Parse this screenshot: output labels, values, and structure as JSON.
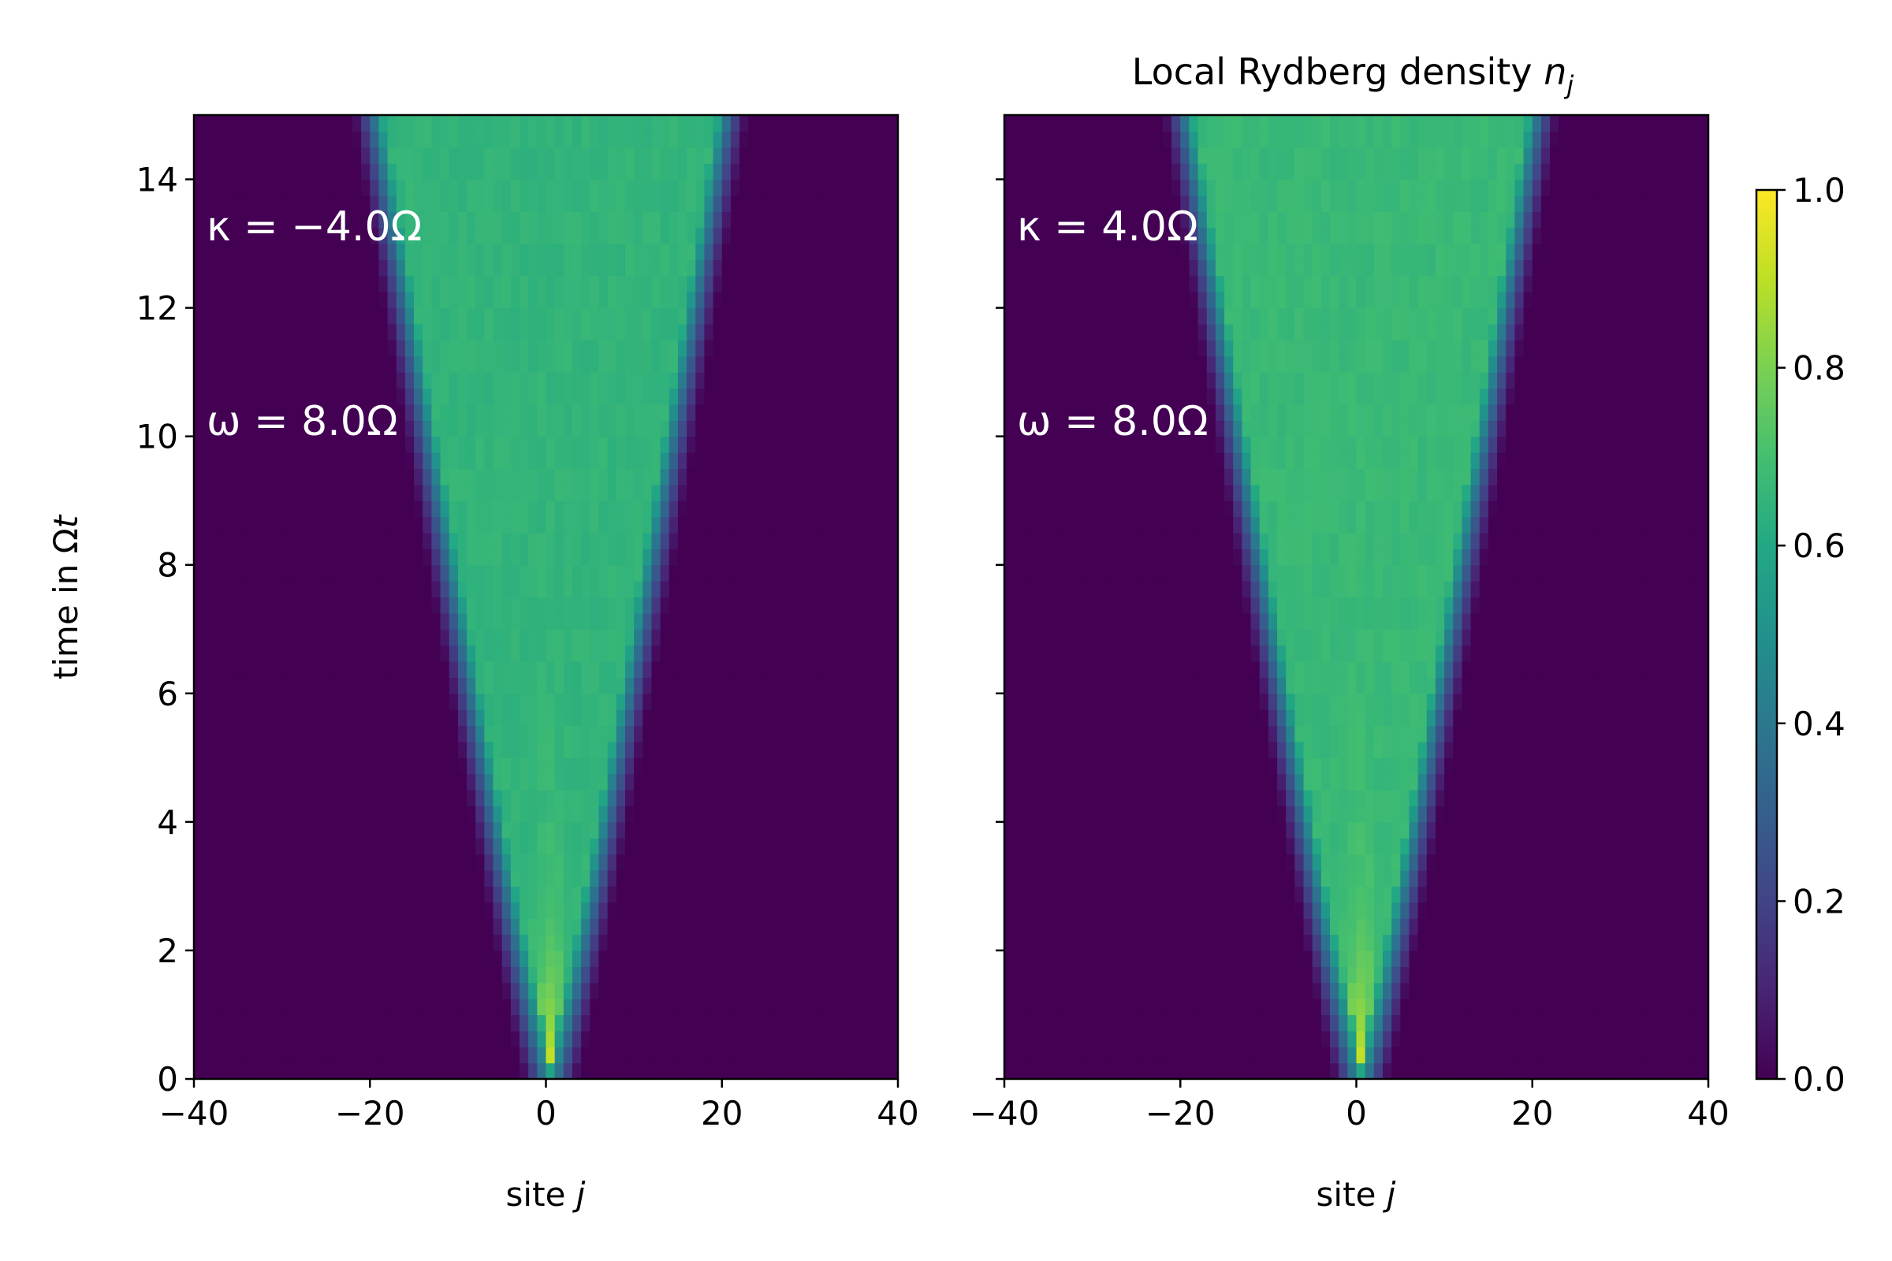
{
  "figure": {
    "title": "Local Rydberg density n_j",
    "title_main": "Local Rydberg density ",
    "title_symbol": "n",
    "title_subscript": "j"
  },
  "colorbar": {
    "colormap": "viridis",
    "range": [
      0.0,
      1.0
    ],
    "ticks": [
      "0.0",
      "0.2",
      "0.4",
      "0.6",
      "0.8",
      "1.0"
    ]
  },
  "chart_data": [
    {
      "type": "heatmap",
      "panel": "left",
      "xlabel": "site j",
      "xlabel_prefix": "site ",
      "xlabel_symbol": "j",
      "ylabel": "time in Ωt",
      "ylabel_prefix": "time in Ω",
      "ylabel_symbol": "t",
      "xlim": [
        -40,
        40
      ],
      "ylim": [
        0,
        15
      ],
      "xticks": [
        "−40",
        "−20",
        "0",
        "20",
        "40"
      ],
      "yticks": [
        "0",
        "2",
        "4",
        "6",
        "8",
        "10",
        "12",
        "14"
      ],
      "annotations": [
        "κ = −4.0Ω",
        "ω = 8.0Ω"
      ],
      "z_range": [
        0,
        1
      ],
      "light_cone": {
        "site_center": 0.5,
        "half_width_at_t15": 21,
        "plateau_density": 0.66,
        "initial_density": 1.0
      },
      "sampled_density": {
        "sites": [
          -20,
          -15,
          -10,
          -5,
          0,
          5,
          10,
          15,
          20
        ],
        "rows": [
          {
            "t": 1,
            "values": [
              0,
              0,
              0,
              0,
              1.0,
              0,
              0,
              0,
              0
            ]
          },
          {
            "t": 4,
            "values": [
              0,
              0,
              0,
              0.45,
              0.78,
              0.45,
              0,
              0,
              0
            ]
          },
          {
            "t": 8,
            "values": [
              0,
              0,
              0.3,
              0.7,
              0.72,
              0.7,
              0.3,
              0,
              0
            ]
          },
          {
            "t": 12,
            "values": [
              0,
              0.35,
              0.68,
              0.68,
              0.68,
              0.68,
              0.68,
              0.35,
              0
            ]
          },
          {
            "t": 15,
            "values": [
              0.35,
              0.6,
              0.66,
              0.66,
              0.66,
              0.66,
              0.66,
              0.62,
              0.45
            ]
          }
        ]
      }
    },
    {
      "type": "heatmap",
      "panel": "right",
      "xlabel": "site j",
      "xlabel_prefix": "site ",
      "xlabel_symbol": "j",
      "ylabel": "",
      "xlim": [
        -40,
        40
      ],
      "ylim": [
        0,
        15
      ],
      "xticks": [
        "−40",
        "−20",
        "0",
        "20",
        "40"
      ],
      "annotations": [
        "κ = 4.0Ω",
        "ω = 8.0Ω"
      ],
      "z_range": [
        0,
        1
      ],
      "light_cone": {
        "site_center": 0.5,
        "half_width_at_t15": 21,
        "plateau_density": 0.68,
        "initial_density": 1.0
      },
      "sampled_density": {
        "sites": [
          -20,
          -15,
          -10,
          -5,
          0,
          5,
          10,
          15,
          20
        ],
        "rows": [
          {
            "t": 1,
            "values": [
              0,
              0,
              0,
              0,
              1.0,
              0,
              0,
              0,
              0
            ]
          },
          {
            "t": 4,
            "values": [
              0,
              0,
              0,
              0.5,
              0.76,
              0.5,
              0,
              0,
              0
            ]
          },
          {
            "t": 8,
            "values": [
              0,
              0,
              0.35,
              0.7,
              0.7,
              0.7,
              0.35,
              0,
              0
            ]
          },
          {
            "t": 12,
            "values": [
              0,
              0.4,
              0.7,
              0.7,
              0.7,
              0.7,
              0.7,
              0.4,
              0
            ]
          },
          {
            "t": 15,
            "values": [
              0.4,
              0.65,
              0.7,
              0.7,
              0.7,
              0.7,
              0.7,
              0.62,
              0.4
            ]
          }
        ]
      }
    }
  ]
}
